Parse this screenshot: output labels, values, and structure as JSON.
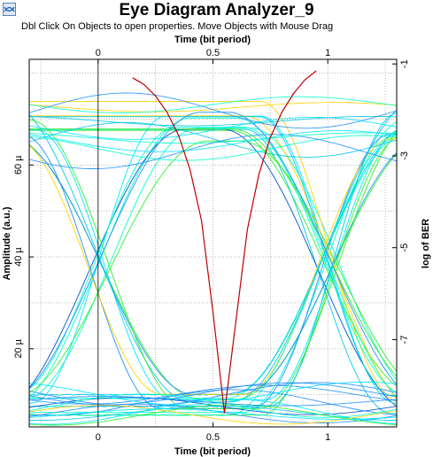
{
  "window": {
    "title": "Eye Diagram Analyzer_9",
    "hint": "Dbl Click On Objects to open properties.  Move Objects with Mouse Drag",
    "icon": "eye-diagram-app-icon"
  },
  "chart_data": {
    "type": "line",
    "title": "Eye Diagram Analyzer_9",
    "xlabel": "Time (bit period)",
    "x2label": "Time (bit period)",
    "ylabel": "Amplitude (a.u.)",
    "y2label": "log of BER",
    "xlim": [
      -0.3,
      1.3
    ],
    "ylim": [
      3,
      83
    ],
    "y2lim": [
      -8.9,
      -0.9
    ],
    "xticks": [
      0,
      0.5,
      1
    ],
    "xtick_labels": [
      "0",
      "0.5",
      "1"
    ],
    "yticks": [
      20,
      40,
      60
    ],
    "ytick_labels": [
      "20 µ",
      "40 µ",
      "60 µ"
    ],
    "y2ticks": [
      -1,
      -3,
      -5,
      -7
    ],
    "y2tick_labels": [
      "-1",
      "-3",
      "-5",
      "-7"
    ],
    "grid": true,
    "eye": {
      "level_low": 8,
      "level_high": 70,
      "crossing_level": 31,
      "crossings": [
        0,
        1
      ],
      "trace_colors": [
        "#00e5ff",
        "#00c8e8",
        "#1e90ff",
        "#0050c8",
        "#00ffcc",
        "#2ef02e",
        "#ffd200"
      ]
    },
    "ber_curve": {
      "name": "BER",
      "color": "#c00000",
      "min_log_ber": -8.6,
      "min_at_x": 0.55,
      "x": [
        0.15,
        0.2,
        0.25,
        0.3,
        0.35,
        0.4,
        0.45,
        0.5,
        0.55,
        0.6,
        0.65,
        0.7,
        0.75,
        0.8,
        0.85,
        0.9,
        0.95
      ],
      "log_ber": [
        -1.3,
        -1.45,
        -1.7,
        -2.05,
        -2.55,
        -3.3,
        -4.4,
        -6.4,
        -8.6,
        -6.6,
        -4.6,
        -3.4,
        -2.6,
        -2.05,
        -1.65,
        -1.35,
        -1.15
      ]
    }
  }
}
